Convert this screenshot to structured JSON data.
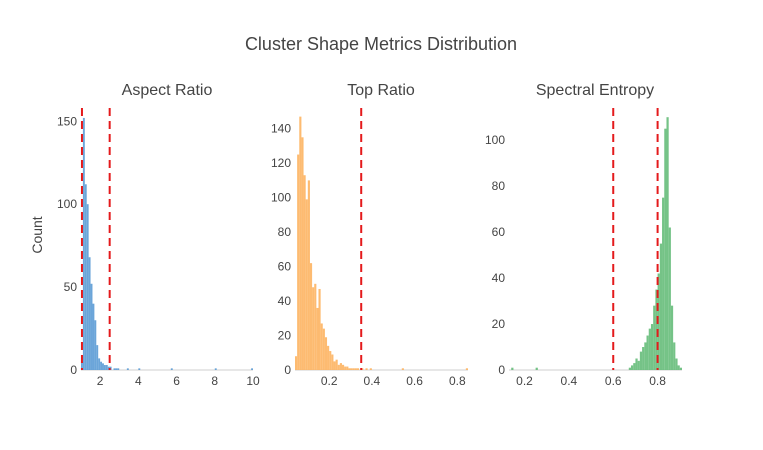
{
  "figure": {
    "title": "Cluster Shape Metrics Distribution",
    "y_axis_title": "Count"
  },
  "chart_data": [
    {
      "type": "bar",
      "title": "Aspect Ratio",
      "color": "#5b9bd5",
      "xlim": [
        1.0,
        10.0
      ],
      "ylim": [
        0,
        158
      ],
      "xticks": [
        2,
        4,
        6,
        8,
        10
      ],
      "yticks": [
        0,
        50,
        100,
        150
      ],
      "bin_start": 1.0,
      "bin_width": 0.1,
      "values": [
        9,
        152,
        112,
        100,
        68,
        52,
        40,
        30,
        15,
        7,
        5,
        4,
        3,
        3,
        2,
        2,
        0,
        1,
        1,
        1,
        0,
        0,
        0,
        0,
        1,
        0,
        0,
        0,
        0,
        0,
        1,
        0,
        0,
        0,
        0,
        0,
        0,
        0,
        0,
        0,
        0,
        0,
        0,
        0,
        0,
        0,
        0,
        1,
        0,
        0,
        0,
        0,
        0,
        0,
        0,
        0,
        0,
        0,
        0,
        0,
        0,
        0,
        0,
        0,
        0,
        0,
        0,
        0,
        0,
        0,
        1,
        0,
        0,
        0,
        0,
        0,
        0,
        0,
        0,
        0,
        0,
        0,
        0,
        0,
        0,
        0,
        0,
        0,
        0,
        1
      ],
      "ref_lines": [
        1.05,
        2.5
      ]
    },
    {
      "type": "bar",
      "title": "Top Ratio",
      "color": "#fdb462",
      "xlim": [
        0.04,
        0.85
      ],
      "ylim": [
        0,
        152
      ],
      "xticks": [
        0.2,
        0.4,
        0.6,
        0.8
      ],
      "yticks": [
        0,
        20,
        40,
        60,
        80,
        100,
        120,
        140
      ],
      "bin_start": 0.04,
      "bin_width": 0.01,
      "values": [
        8,
        125,
        147,
        135,
        113,
        99,
        110,
        62,
        48,
        50,
        36,
        47,
        27,
        24,
        19,
        14,
        11,
        9,
        5,
        6,
        3,
        4,
        3,
        2,
        2,
        1,
        1,
        1,
        1,
        1,
        0,
        1,
        0,
        1,
        0,
        1,
        0,
        0,
        0,
        0,
        0,
        0,
        0,
        0,
        0,
        0,
        0,
        0,
        0,
        0,
        1,
        0,
        0,
        0,
        0,
        0,
        0,
        0,
        0,
        0,
        0,
        0,
        0,
        0,
        0,
        0,
        0,
        0,
        0,
        0,
        0,
        0,
        0,
        0,
        0,
        0,
        0,
        0,
        0,
        0,
        1
      ],
      "ref_lines": [
        0.35
      ]
    },
    {
      "type": "bar",
      "title": "Spectral Entropy",
      "color": "#66bd7a",
      "xlim": [
        0.13,
        0.91
      ],
      "ylim": [
        0,
        114
      ],
      "xticks": [
        0.2,
        0.4,
        0.6,
        0.8
      ],
      "yticks": [
        0,
        20,
        40,
        60,
        80,
        100
      ],
      "bin_start": 0.13,
      "bin_width": 0.01,
      "values": [
        0,
        1,
        0,
        0,
        0,
        0,
        0,
        0,
        0,
        0,
        0,
        0,
        1,
        0,
        0,
        0,
        0,
        0,
        0,
        0,
        0,
        0,
        0,
        0,
        0,
        0,
        0,
        0,
        0,
        0,
        0,
        0,
        0,
        0,
        0,
        0,
        0,
        0,
        0,
        0,
        0,
        0,
        0,
        0,
        0,
        0,
        0,
        0,
        0,
        0,
        0,
        0,
        0,
        0,
        1,
        2,
        3,
        5,
        4,
        8,
        10,
        12,
        15,
        18,
        20,
        28,
        35,
        42,
        55,
        75,
        105,
        110,
        62,
        28,
        12,
        5,
        2,
        1
      ],
      "ref_lines": [
        0.6,
        0.8
      ]
    }
  ]
}
